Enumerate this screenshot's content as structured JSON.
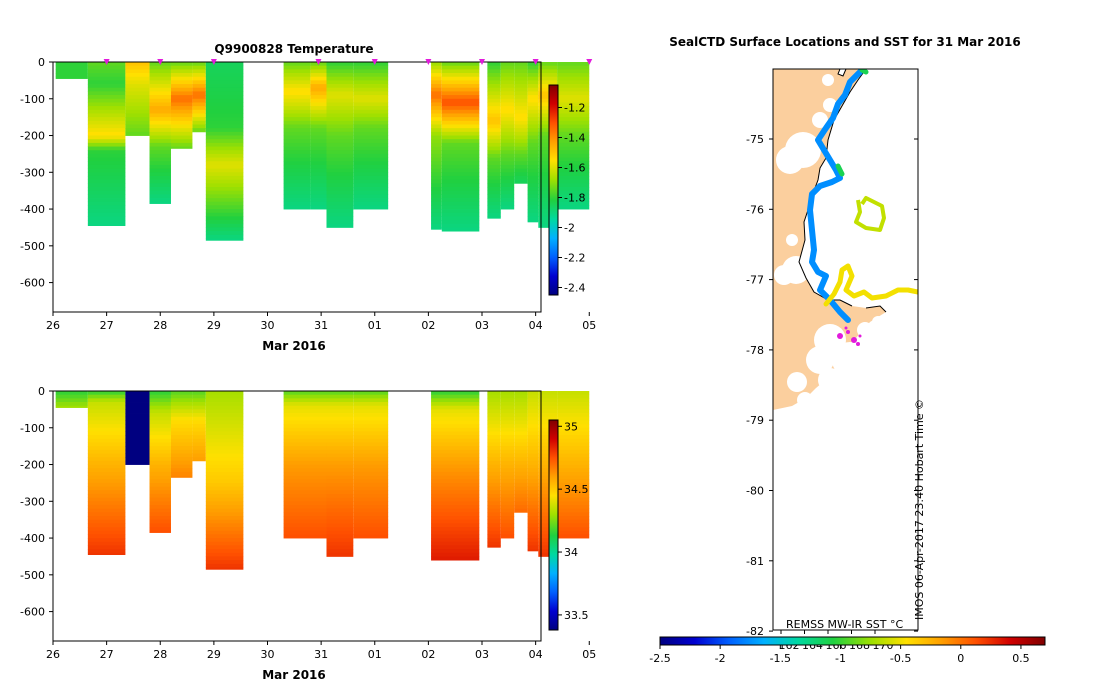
{
  "colors": {
    "land": "#fbcf9e",
    "cloud": "#ffffff",
    "coast": "#000000",
    "marker": "#e21adc",
    "scale": [
      "#000080",
      "#0000d0",
      "#0060ff",
      "#00b0ff",
      "#00d8a0",
      "#20d040",
      "#a0e000",
      "#ffe000",
      "#ffa000",
      "#ff5000",
      "#d00000",
      "#800000"
    ]
  },
  "chart_data": [
    {
      "id": "temperature",
      "type": "heatmap",
      "title": "Q9900828  Temperature",
      "xlabel": "Mar 2016",
      "xlim": [
        26,
        35.1
      ],
      "xticks": [
        {
          "v": 26,
          "l": "26"
        },
        {
          "v": 27,
          "l": "27"
        },
        {
          "v": 28,
          "l": "28"
        },
        {
          "v": 29,
          "l": "29"
        },
        {
          "v": 30,
          "l": "30"
        },
        {
          "v": 31,
          "l": "31"
        },
        {
          "v": 32,
          "l": "01"
        },
        {
          "v": 33,
          "l": "02"
        },
        {
          "v": 34,
          "l": "03"
        },
        {
          "v": 35,
          "l": "04"
        },
        {
          "v": 36,
          "l": "05"
        }
      ],
      "ylim": [
        -680,
        0
      ],
      "yticks": [
        0,
        -100,
        -200,
        -300,
        -400,
        -500,
        -600
      ],
      "cbar_range": [
        -2.45,
        -1.05
      ],
      "cbar_ticks": [
        -1.2,
        -1.4,
        -1.6,
        -1.8,
        -2,
        -2.2,
        -2.4
      ],
      "markers": [
        27.0,
        28.0,
        29.0,
        30.95,
        32.0,
        33.0,
        34.0,
        35.0,
        36.0
      ],
      "profiles": [
        {
          "x0": 26.05,
          "x1": 26.65,
          "depth": 45,
          "stops": [
            [
              0,
              -1.8
            ],
            [
              1,
              -1.8
            ]
          ]
        },
        {
          "x0": 26.65,
          "x1": 27.35,
          "depth": 445,
          "stops": [
            [
              0,
              -1.75
            ],
            [
              60,
              -1.8
            ],
            [
              200,
              -1.55
            ],
            [
              240,
              -1.8
            ],
            [
              445,
              -1.9
            ]
          ]
        },
        {
          "x0": 27.35,
          "x1": 27.8,
          "depth": 200,
          "stops": [
            [
              0,
              -1.5
            ],
            [
              60,
              -1.6
            ],
            [
              200,
              -1.75
            ]
          ]
        },
        {
          "x0": 27.8,
          "x1": 28.2,
          "depth": 385,
          "stops": [
            [
              0,
              -1.75
            ],
            [
              130,
              -1.45
            ],
            [
              230,
              -1.75
            ],
            [
              385,
              -1.9
            ]
          ]
        },
        {
          "x0": 28.2,
          "x1": 28.6,
          "depth": 235,
          "stops": [
            [
              0,
              -1.75
            ],
            [
              100,
              -1.35
            ],
            [
              150,
              -1.5
            ],
            [
              235,
              -1.75
            ]
          ]
        },
        {
          "x0": 28.6,
          "x1": 28.85,
          "depth": 190,
          "stops": [
            [
              0,
              -1.75
            ],
            [
              90,
              -1.35
            ],
            [
              190,
              -1.75
            ]
          ]
        },
        {
          "x0": 28.85,
          "x1": 29.55,
          "depth": 485,
          "stops": [
            [
              0,
              -1.85
            ],
            [
              180,
              -1.8
            ],
            [
              280,
              -1.6
            ],
            [
              485,
              -1.9
            ]
          ]
        },
        {
          "x0": 30.3,
          "x1": 30.8,
          "depth": 400,
          "stops": [
            [
              0,
              -1.75
            ],
            [
              80,
              -1.55
            ],
            [
              180,
              -1.75
            ],
            [
              400,
              -1.9
            ]
          ]
        },
        {
          "x0": 30.8,
          "x1": 31.1,
          "depth": 400,
          "stops": [
            [
              0,
              -1.75
            ],
            [
              70,
              -1.45
            ],
            [
              180,
              -1.75
            ],
            [
              400,
              -1.9
            ]
          ]
        },
        {
          "x0": 31.1,
          "x1": 31.6,
          "depth": 450,
          "stops": [
            [
              0,
              -1.8
            ],
            [
              90,
              -1.6
            ],
            [
              200,
              -1.75
            ],
            [
              450,
              -1.9
            ]
          ]
        },
        {
          "x0": 31.6,
          "x1": 32.25,
          "depth": 400,
          "stops": [
            [
              0,
              -1.8
            ],
            [
              100,
              -1.6
            ],
            [
              180,
              -1.75
            ],
            [
              400,
              -1.9
            ]
          ]
        },
        {
          "x0": 33.05,
          "x1": 33.25,
          "depth": 455,
          "stops": [
            [
              0,
              -1.7
            ],
            [
              90,
              -1.35
            ],
            [
              200,
              -1.7
            ],
            [
              455,
              -1.9
            ]
          ]
        },
        {
          "x0": 33.25,
          "x1": 33.95,
          "depth": 460,
          "stops": [
            [
              0,
              -1.75
            ],
            [
              110,
              -1.3
            ],
            [
              220,
              -1.75
            ],
            [
              460,
              -1.9
            ]
          ]
        },
        {
          "x0": 34.1,
          "x1": 34.35,
          "depth": 425,
          "stops": [
            [
              0,
              -1.8
            ],
            [
              160,
              -1.5
            ],
            [
              260,
              -1.75
            ],
            [
              425,
              -1.9
            ]
          ]
        },
        {
          "x0": 34.35,
          "x1": 34.6,
          "depth": 400,
          "stops": [
            [
              0,
              -1.75
            ],
            [
              130,
              -1.55
            ],
            [
              250,
              -1.75
            ],
            [
              400,
              -1.9
            ]
          ]
        },
        {
          "x0": 34.6,
          "x1": 34.85,
          "depth": 330,
          "stops": [
            [
              0,
              -1.75
            ],
            [
              150,
              -1.55
            ],
            [
              250,
              -1.75
            ],
            [
              330,
              -1.85
            ]
          ]
        },
        {
          "x0": 34.85,
          "x1": 35.05,
          "depth": 435,
          "stops": [
            [
              0,
              -1.8
            ],
            [
              100,
              -1.55
            ],
            [
              220,
              -1.75
            ],
            [
              435,
              -1.9
            ]
          ]
        },
        {
          "x0": 35.05,
          "x1": 35.4,
          "depth": 450,
          "stops": [
            [
              0,
              -1.75
            ],
            [
              90,
              -1.5
            ],
            [
              200,
              -1.75
            ],
            [
              450,
              -1.9
            ]
          ]
        },
        {
          "x0": 35.4,
          "x1": 36.0,
          "depth": 400,
          "stops": [
            [
              0,
              -1.75
            ],
            [
              100,
              -1.6
            ],
            [
              200,
              -1.75
            ],
            [
              400,
              -1.9
            ]
          ]
        }
      ]
    },
    {
      "id": "salinity",
      "type": "heatmap",
      "title": "",
      "xlabel": "Mar 2016",
      "xlim": [
        26,
        35.1
      ],
      "xticks": [
        {
          "v": 26,
          "l": "26"
        },
        {
          "v": 27,
          "l": "27"
        },
        {
          "v": 28,
          "l": "28"
        },
        {
          "v": 29,
          "l": "29"
        },
        {
          "v": 30,
          "l": "30"
        },
        {
          "v": 31,
          "l": "31"
        },
        {
          "v": 32,
          "l": "01"
        },
        {
          "v": 33,
          "l": "02"
        },
        {
          "v": 34,
          "l": "03"
        },
        {
          "v": 35,
          "l": "04"
        },
        {
          "v": 36,
          "l": "05"
        }
      ],
      "ylim": [
        -680,
        0
      ],
      "yticks": [
        0,
        -100,
        -200,
        -300,
        -400,
        -500,
        -600
      ],
      "cbar_range": [
        33.38,
        35.05
      ],
      "cbar_ticks": [
        35,
        34.5,
        34,
        33.5
      ],
      "profiles": [
        {
          "x0": 26.05,
          "x1": 26.65,
          "depth": 45,
          "stops": [
            [
              0,
              34.15
            ],
            [
              45,
              34.3
            ]
          ]
        },
        {
          "x0": 26.65,
          "x1": 27.35,
          "depth": 445,
          "stops": [
            [
              0,
              34.15
            ],
            [
              30,
              34.35
            ],
            [
              200,
              34.55
            ],
            [
              445,
              34.8
            ]
          ]
        },
        {
          "x0": 27.35,
          "x1": 27.8,
          "depth": 200,
          "stops": [
            [
              0,
              33.38
            ],
            [
              200,
              33.38
            ]
          ]
        },
        {
          "x0": 27.8,
          "x1": 28.2,
          "depth": 385,
          "stops": [
            [
              0,
              34.15
            ],
            [
              60,
              34.35
            ],
            [
              200,
              34.55
            ],
            [
              385,
              34.75
            ]
          ]
        },
        {
          "x0": 28.2,
          "x1": 28.6,
          "depth": 235,
          "stops": [
            [
              0,
              34.2
            ],
            [
              80,
              34.45
            ],
            [
              235,
              34.65
            ]
          ]
        },
        {
          "x0": 28.6,
          "x1": 28.85,
          "depth": 190,
          "stops": [
            [
              0,
              34.2
            ],
            [
              80,
              34.45
            ],
            [
              190,
              34.6
            ]
          ]
        },
        {
          "x0": 28.85,
          "x1": 29.55,
          "depth": 485,
          "stops": [
            [
              0,
              34.3
            ],
            [
              250,
              34.5
            ],
            [
              485,
              34.8
            ]
          ]
        },
        {
          "x0": 30.3,
          "x1": 31.1,
          "depth": 400,
          "stops": [
            [
              0,
              34.2
            ],
            [
              40,
              34.4
            ],
            [
              200,
              34.6
            ],
            [
              400,
              34.75
            ]
          ]
        },
        {
          "x0": 31.1,
          "x1": 31.6,
          "depth": 450,
          "stops": [
            [
              0,
              34.2
            ],
            [
              40,
              34.4
            ],
            [
              200,
              34.6
            ],
            [
              450,
              34.8
            ]
          ]
        },
        {
          "x0": 31.6,
          "x1": 32.25,
          "depth": 400,
          "stops": [
            [
              0,
              34.2
            ],
            [
              40,
              34.4
            ],
            [
              200,
              34.6
            ],
            [
              400,
              34.75
            ]
          ]
        },
        {
          "x0": 33.05,
          "x1": 33.95,
          "depth": 460,
          "stops": [
            [
              0,
              34.15
            ],
            [
              50,
              34.4
            ],
            [
              200,
              34.6
            ],
            [
              460,
              34.85
            ]
          ]
        },
        {
          "x0": 34.1,
          "x1": 34.35,
          "depth": 425,
          "stops": [
            [
              0,
              34.3
            ],
            [
              200,
              34.55
            ],
            [
              425,
              34.8
            ]
          ]
        },
        {
          "x0": 34.35,
          "x1": 34.6,
          "depth": 400,
          "stops": [
            [
              0,
              34.3
            ],
            [
              200,
              34.55
            ],
            [
              400,
              34.75
            ]
          ]
        },
        {
          "x0": 34.6,
          "x1": 34.85,
          "depth": 330,
          "stops": [
            [
              0,
              34.3
            ],
            [
              200,
              34.55
            ],
            [
              330,
              34.7
            ]
          ]
        },
        {
          "x0": 34.85,
          "x1": 35.05,
          "depth": 435,
          "stops": [
            [
              0,
              34.35
            ],
            [
              200,
              34.55
            ],
            [
              435,
              34.8
            ]
          ]
        },
        {
          "x0": 35.05,
          "x1": 35.4,
          "depth": 450,
          "stops": [
            [
              0,
              34.35
            ],
            [
              200,
              34.55
            ],
            [
              450,
              34.8
            ]
          ]
        },
        {
          "x0": 35.4,
          "x1": 36.0,
          "depth": 400,
          "stops": [
            [
              0,
              34.35
            ],
            [
              200,
              34.55
            ],
            [
              400,
              34.75
            ]
          ]
        }
      ]
    },
    {
      "id": "sst_map",
      "type": "scatter",
      "title": "SealCTD Surface Locations and SST for 31 Mar 2016",
      "lat_ticks": [
        -75,
        -76,
        -77,
        -78,
        -79,
        -80,
        -81,
        -82
      ],
      "lon_ticks": [
        "162",
        "164",
        "166",
        "168",
        "170"
      ],
      "cbar_ticks": [
        "-2.5",
        "-2",
        "-1.5",
        "-1",
        "-0.5",
        "0",
        "0.5"
      ],
      "cbar_range": [
        -2.5,
        0.7
      ],
      "product_label": "REMSS MW-IR SST °C",
      "credit": "IMOS 06-Apr-2017 23:40 Hobart Time ©",
      "blue_track_temp": -1.75,
      "green_spot_temp": -1.1,
      "yellow_track_temp": -0.5,
      "loop_temp": -0.65
    }
  ]
}
